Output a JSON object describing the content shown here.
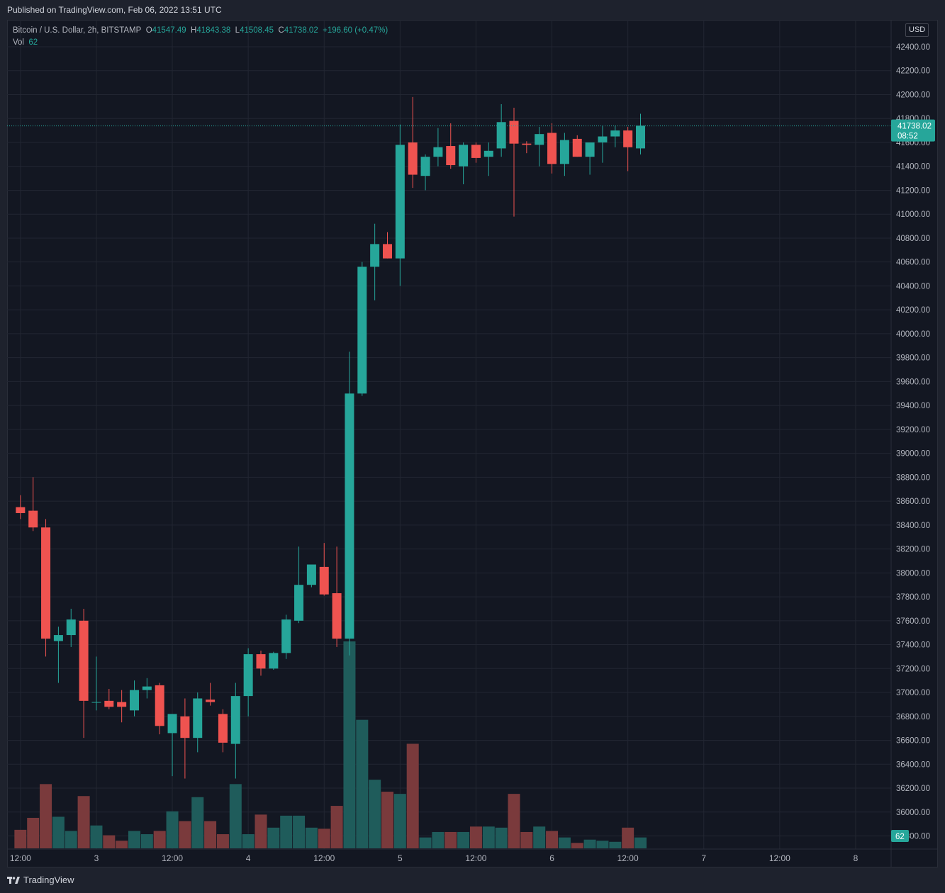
{
  "published": "Published on TradingView.com, Feb 06, 2022 13:51 UTC",
  "brand": "TradingView",
  "currency_button": "USD",
  "legend": {
    "symbol": "Bitcoin / U.S. Dollar, 2h, BITSTAMP",
    "o_label": "O",
    "o": "41547.49",
    "h_label": "H",
    "h": "41843.38",
    "l_label": "L",
    "l": "41508.45",
    "c_label": "C",
    "c": "41738.02",
    "change": "+196.60 (+0.47%)",
    "vol_label": "Vol",
    "vol": "62"
  },
  "colors": {
    "up": "#26a69a",
    "down": "#ef5350",
    "vol_up": "#1f5c5b",
    "vol_down": "#7a3a3c",
    "background": "#131722",
    "grid": "#222632"
  },
  "chart_data": {
    "type": "candlestick",
    "ylim": [
      35800,
      42600
    ],
    "y_ticks": [
      "42400.00",
      "42200.00",
      "42000.00",
      "41800.00",
      "41600.00",
      "41400.00",
      "41200.00",
      "41000.00",
      "40800.00",
      "40600.00",
      "40400.00",
      "40200.00",
      "40000.00",
      "39800.00",
      "39600.00",
      "39400.00",
      "39200.00",
      "39000.00",
      "38800.00",
      "38600.00",
      "38400.00",
      "38200.00",
      "38000.00",
      "37800.00",
      "37600.00",
      "37400.00",
      "37200.00",
      "37000.00",
      "36800.00",
      "36600.00",
      "36400.00",
      "36200.00",
      "36000.00",
      "35800.00"
    ],
    "x_ticks": [
      {
        "label": "12:00",
        "index": 1
      },
      {
        "label": "3",
        "index": 7
      },
      {
        "label": "12:00",
        "index": 13
      },
      {
        "label": "4",
        "index": 19
      },
      {
        "label": "12:00",
        "index": 25
      },
      {
        "label": "5",
        "index": 31
      },
      {
        "label": "12:00",
        "index": 37
      },
      {
        "label": "6",
        "index": 43
      },
      {
        "label": "12:00",
        "index": 49
      },
      {
        "label": "7",
        "index": 55
      },
      {
        "label": "12:00",
        "index": 61
      },
      {
        "label": "8",
        "index": 67
      }
    ],
    "last_price": "41738.02",
    "countdown": "08:52",
    "last_volume": "62",
    "ohlc": [
      [
        38550,
        38650,
        38450,
        38500
      ],
      [
        38520,
        38800,
        38350,
        38380
      ],
      [
        38380,
        38450,
        37300,
        37450
      ],
      [
        37430,
        37550,
        37080,
        37480
      ],
      [
        37480,
        37700,
        37380,
        37610
      ],
      [
        37600,
        37700,
        36620,
        36930
      ],
      [
        36920,
        37300,
        36850,
        36920
      ],
      [
        36930,
        37030,
        36860,
        36880
      ],
      [
        36920,
        37020,
        36750,
        36880
      ],
      [
        36850,
        37100,
        36800,
        37020
      ],
      [
        37020,
        37120,
        36950,
        37050
      ],
      [
        37060,
        37080,
        36650,
        36720
      ],
      [
        36660,
        36820,
        36300,
        36820
      ],
      [
        36800,
        36950,
        36280,
        36620
      ],
      [
        36620,
        37000,
        36500,
        36950
      ],
      [
        36940,
        37080,
        36890,
        36920
      ],
      [
        36820,
        36860,
        36500,
        36580
      ],
      [
        36570,
        37080,
        36280,
        36970
      ],
      [
        36970,
        37370,
        36800,
        37320
      ],
      [
        37320,
        37350,
        37140,
        37200
      ],
      [
        37200,
        37340,
        37190,
        37330
      ],
      [
        37330,
        37650,
        37280,
        37610
      ],
      [
        37600,
        38220,
        37580,
        37900
      ],
      [
        37900,
        38040,
        37880,
        38070
      ],
      [
        38050,
        38250,
        37810,
        37820
      ],
      [
        37830,
        38220,
        37380,
        37450
      ],
      [
        37450,
        39850,
        37310,
        39500
      ],
      [
        39500,
        40600,
        39480,
        40560
      ],
      [
        40560,
        40920,
        40280,
        40750
      ],
      [
        40750,
        40850,
        40630,
        40630
      ],
      [
        40630,
        41750,
        40400,
        41580
      ],
      [
        41600,
        41980,
        41220,
        41330
      ],
      [
        41320,
        41500,
        41200,
        41480
      ],
      [
        41480,
        41720,
        41400,
        41560
      ],
      [
        41570,
        41760,
        41380,
        41410
      ],
      [
        41400,
        41600,
        41250,
        41580
      ],
      [
        41580,
        41600,
        41430,
        41470
      ],
      [
        41480,
        41600,
        41320,
        41530
      ],
      [
        41550,
        41920,
        41480,
        41770
      ],
      [
        41780,
        41890,
        40980,
        41590
      ],
      [
        41590,
        41610,
        41510,
        41580
      ],
      [
        41580,
        41730,
        41400,
        41670
      ],
      [
        41680,
        41760,
        41340,
        41420
      ],
      [
        41420,
        41680,
        41320,
        41620
      ],
      [
        41630,
        41660,
        41480,
        41480
      ],
      [
        41480,
        41600,
        41330,
        41600
      ],
      [
        41600,
        41740,
        41430,
        41650
      ],
      [
        41650,
        41740,
        41560,
        41700
      ],
      [
        41700,
        41730,
        41360,
        41560
      ],
      [
        41550,
        41840,
        41500,
        41740
      ]
    ],
    "volume": [
      [
        1,
        1.7
      ],
      [
        2,
        2.8
      ],
      [
        3,
        5.9
      ],
      [
        4,
        2.9
      ],
      [
        5,
        1.6
      ],
      [
        6,
        4.8
      ],
      [
        7,
        2.1
      ],
      [
        8,
        1.2
      ],
      [
        9,
        0.7
      ],
      [
        10,
        1.6
      ],
      [
        11,
        1.3
      ],
      [
        12,
        1.6
      ],
      [
        13,
        3.4
      ],
      [
        14,
        2.5
      ],
      [
        15,
        4.7
      ],
      [
        16,
        2.5
      ],
      [
        17,
        1.3
      ],
      [
        18,
        5.9
      ],
      [
        19,
        1.3
      ],
      [
        20,
        3.1
      ],
      [
        21,
        1.9
      ],
      [
        22,
        3.0
      ],
      [
        23,
        3.0
      ],
      [
        24,
        1.9
      ],
      [
        25,
        1.8
      ],
      [
        26,
        3.9
      ],
      [
        27,
        19.0
      ],
      [
        28,
        11.8
      ],
      [
        29,
        6.3
      ],
      [
        30,
        5.2
      ],
      [
        31,
        5.0
      ],
      [
        32,
        9.6
      ],
      [
        33,
        1.0
      ],
      [
        34,
        1.5
      ],
      [
        35,
        1.5
      ],
      [
        36,
        1.5
      ],
      [
        37,
        2.0
      ],
      [
        38,
        2.0
      ],
      [
        39,
        1.9
      ],
      [
        40,
        5.0
      ],
      [
        41,
        1.5
      ],
      [
        42,
        2.0
      ],
      [
        43,
        1.6
      ],
      [
        44,
        1.0
      ],
      [
        45,
        0.5
      ],
      [
        46,
        0.8
      ],
      [
        47,
        0.7
      ],
      [
        48,
        0.6
      ],
      [
        49,
        1.9
      ],
      [
        50,
        1.0
      ]
    ]
  }
}
